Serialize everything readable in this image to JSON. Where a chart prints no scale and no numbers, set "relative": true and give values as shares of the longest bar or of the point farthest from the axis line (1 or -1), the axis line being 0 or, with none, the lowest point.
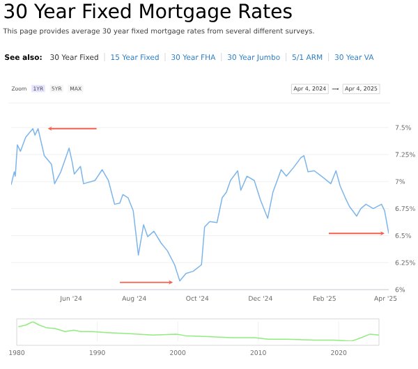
{
  "chart_data": [
    {
      "type": "line",
      "title": "30 Year Fixed Mortgage Rates",
      "subtitle": "This page provides average 30 year fixed mortgage rates from several different surveys.",
      "annotations": [
        "See also:",
        "30 Year Fixed",
        "15 Year Fixed",
        "30 Year FHA",
        "30 Year Jumbo",
        "5/1 ARM",
        "30 Year VA",
        "Zoom",
        "1YR",
        "5YR",
        "MAX",
        "Apr 4, 2024",
        "Apr 4, 2025"
      ],
      "x": [
        "2024-04-04",
        "2024-04-07",
        "2024-04-08",
        "2024-04-10",
        "2024-04-13",
        "2024-04-18",
        "2024-04-25",
        "2024-04-27",
        "2024-04-30",
        "2024-05-06",
        "2024-05-13",
        "2024-05-16",
        "2024-05-22",
        "2024-05-30",
        "2024-06-02",
        "2024-06-04",
        "2024-06-10",
        "2024-06-13",
        "2024-06-24",
        "2024-07-01",
        "2024-07-07",
        "2024-07-13",
        "2024-07-18",
        "2024-07-21",
        "2024-07-26",
        "2024-07-31",
        "2024-08-05",
        "2024-08-10",
        "2024-08-14",
        "2024-08-20",
        "2024-08-27",
        "2024-09-02",
        "2024-09-09",
        "2024-09-14",
        "2024-09-20",
        "2024-09-27",
        "2024-10-05",
        "2024-10-08",
        "2024-10-13",
        "2024-10-20",
        "2024-10-25",
        "2024-10-29",
        "2024-11-02",
        "2024-11-09",
        "2024-11-12",
        "2024-11-18",
        "2024-11-25",
        "2024-12-01",
        "2024-12-08",
        "2024-12-13",
        "2024-12-21",
        "2024-12-26",
        "2025-01-02",
        "2025-01-09",
        "2025-01-12",
        "2025-01-16",
        "2025-01-22",
        "2025-01-29",
        "2025-02-07",
        "2025-02-12",
        "2025-02-16",
        "2025-02-21",
        "2025-02-25",
        "2025-03-04",
        "2025-03-08",
        "2025-03-13",
        "2025-03-20",
        "2025-03-28",
        "2025-03-31",
        "2025-04-04"
      ],
      "values": [
        6.97,
        7.09,
        7.05,
        7.34,
        7.28,
        7.41,
        7.49,
        7.43,
        7.49,
        7.24,
        7.16,
        6.98,
        7.09,
        7.31,
        7.18,
        7.07,
        7.14,
        6.98,
        7.01,
        7.11,
        7.01,
        6.79,
        6.8,
        6.88,
        6.85,
        6.73,
        6.32,
        6.6,
        6.49,
        6.54,
        6.43,
        6.36,
        6.23,
        6.08,
        6.15,
        6.17,
        6.23,
        6.58,
        6.63,
        6.62,
        6.85,
        6.9,
        7.01,
        7.1,
        6.92,
        7.05,
        7.01,
        6.83,
        6.66,
        6.9,
        7.11,
        7.05,
        7.13,
        7.22,
        7.24,
        7.09,
        7.1,
        7.05,
        6.98,
        7.1,
        6.96,
        6.85,
        6.77,
        6.68,
        6.75,
        6.79,
        6.75,
        6.79,
        6.73,
        6.52
      ],
      "color": "#7cb5ec",
      "xlim": [
        "2024-04-04",
        "2025-04-04"
      ],
      "xticks": [
        {
          "value": "2024-06-01",
          "label": "Jun '24"
        },
        {
          "value": "2024-08-01",
          "label": "Aug '24"
        },
        {
          "value": "2024-10-01",
          "label": "Oct '24"
        },
        {
          "value": "2024-12-01",
          "label": "Dec '24"
        },
        {
          "value": "2025-02-01",
          "label": "Feb '25"
        },
        {
          "value": "2025-04-01",
          "label": "Apr '25"
        }
      ],
      "ylim": [
        6,
        7.5
      ],
      "yticks": [
        {
          "value": 6,
          "label": "6%"
        },
        {
          "value": 6.25,
          "label": "6.25%"
        },
        {
          "value": 6.5,
          "label": "6.5%"
        },
        {
          "value": 6.75,
          "label": "6.75%"
        },
        {
          "value": 7,
          "label": "7%"
        },
        {
          "value": 7.25,
          "label": "7.25%"
        },
        {
          "value": 7.5,
          "label": "7.5%"
        }
      ],
      "grid": "y"
    },
    {
      "type": "line",
      "relative": true,
      "x": [
        1980.2,
        1981.1,
        1982.0,
        1982.8,
        1983.7,
        1984.8,
        1986.0,
        1987.1,
        1988.0,
        1989.4,
        1991.2,
        1994.0,
        1996.9,
        1999.8,
        2000.9,
        2003.8,
        2006.7,
        2009.5,
        2011.3,
        2013.6,
        2017.0,
        2019.3,
        2021.6,
        2022.8,
        2023.9,
        2025.0
      ],
      "values": [
        0.74,
        0.82,
        1,
        0.82,
        0.69,
        0.64,
        0.49,
        0.56,
        0.49,
        0.49,
        0.44,
        0.38,
        0.31,
        0.36,
        0.28,
        0.23,
        0.18,
        0.18,
        0.1,
        0.1,
        0.05,
        0.05,
        0,
        0.18,
        0.36,
        0.31
      ],
      "color": "#90ed7d",
      "xlim": [
        1980,
        2025
      ],
      "xticks": [
        1980,
        1990,
        2000,
        2010,
        2020
      ],
      "grid": "x",
      "tick_labels": "x"
    }
  ]
}
